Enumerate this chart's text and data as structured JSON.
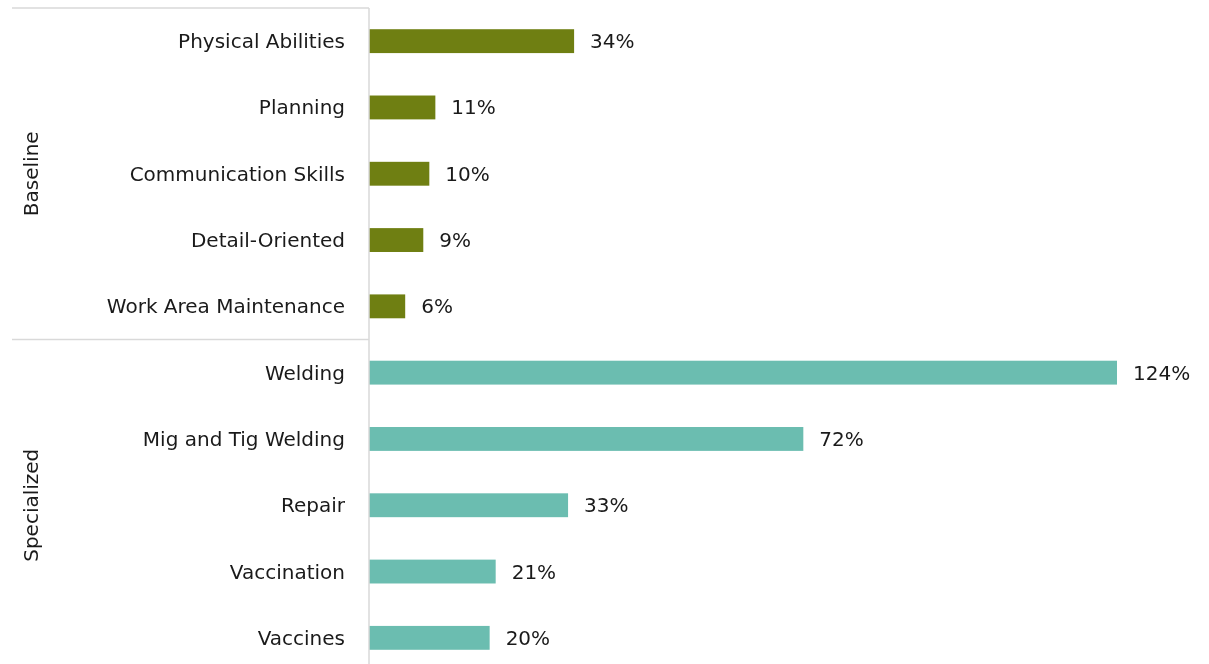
{
  "chart_data": {
    "type": "bar",
    "orientation": "horizontal",
    "stacked": true,
    "annotations": [
      "Baseline",
      "Specialized"
    ],
    "categories": [
      "Physical Abilities",
      "Planning",
      "Communication Skills",
      "Detail-Oriented",
      "Work Area Maintenance",
      "Welding",
      "Mig and Tig Welding",
      "Repair",
      "Vaccination",
      "Vaccines"
    ],
    "series": [
      {
        "color": "#6f7f12",
        "values": [
          34,
          11,
          10,
          9,
          6,
          null,
          null,
          null,
          null,
          null
        ],
        "value_labels": [
          "34%",
          "11%",
          "10%",
          "9%",
          "6%",
          null,
          null,
          null,
          null,
          null
        ]
      },
      {
        "color": "#6bbdb0",
        "values": [
          null,
          null,
          null,
          null,
          null,
          124,
          72,
          33,
          21,
          20
        ],
        "value_labels": [
          null,
          null,
          null,
          null,
          null,
          "124%",
          "72%",
          "33%",
          "21%",
          "20%"
        ]
      }
    ]
  }
}
